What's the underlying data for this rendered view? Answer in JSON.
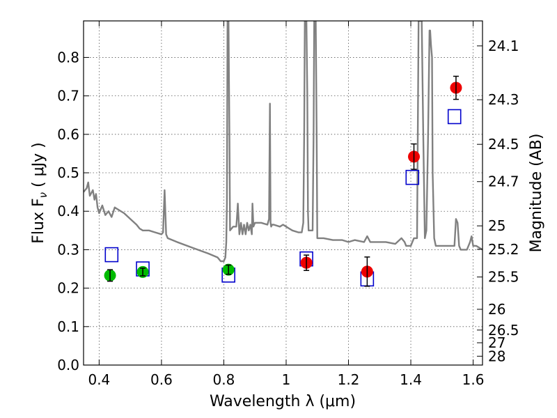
{
  "chart_data": {
    "type": "scatter",
    "title": "",
    "xlabel": "Wavelength  λ (μm)",
    "ylabel": "Flux  F",
    "ylabel_sub": "ν",
    "ylabel_unit": "  ( μJy )",
    "y2label": "Magnitude (AB)",
    "xlim": [
      0.35,
      1.63
    ],
    "ylim": [
      0.0,
      0.895
    ],
    "grid": true,
    "xticks": [
      0.4,
      0.6,
      0.8,
      1.0,
      1.2,
      1.4,
      1.6
    ],
    "xtick_labels": [
      "0.4",
      "0.6",
      "0.8",
      "1",
      "1.2",
      "1.4",
      "1.6"
    ],
    "yticks": [
      0.0,
      0.1,
      0.2,
      0.3,
      0.4,
      0.5,
      0.6,
      0.7,
      0.8
    ],
    "ytick_labels": [
      "0.0",
      "0.1",
      "0.2",
      "0.3",
      "0.4",
      "0.5",
      "0.6",
      "0.7",
      "0.8"
    ],
    "y2ticks": [
      {
        "label": "24.1",
        "flux": 0.83
      },
      {
        "label": "24.3",
        "flux": 0.69
      },
      {
        "label": "24.5",
        "flux": 0.574
      },
      {
        "label": "24.7",
        "flux": 0.477
      },
      {
        "label": "25",
        "flux": 0.362
      },
      {
        "label": "25.2",
        "flux": 0.301
      },
      {
        "label": "25.5",
        "flux": 0.229
      },
      {
        "label": "26",
        "flux": 0.145
      },
      {
        "label": "26.5",
        "flux": 0.091
      },
      {
        "label": "27",
        "flux": 0.058
      },
      {
        "label": "28",
        "flux": 0.023
      }
    ],
    "series": [
      {
        "name": "model spectrum",
        "kind": "line",
        "color": "#808080",
        "x": [
          0.35,
          0.36,
          0.365,
          0.37,
          0.38,
          0.385,
          0.39,
          0.395,
          0.4,
          0.41,
          0.42,
          0.43,
          0.44,
          0.45,
          0.46,
          0.48,
          0.5,
          0.52,
          0.53,
          0.54,
          0.56,
          0.58,
          0.6,
          0.605,
          0.61,
          0.615,
          0.62,
          0.65,
          0.7,
          0.75,
          0.78,
          0.79,
          0.8,
          0.805,
          0.808,
          0.81,
          0.812,
          0.815,
          0.818,
          0.82,
          0.83,
          0.84,
          0.842,
          0.845,
          0.85,
          0.855,
          0.86,
          0.865,
          0.87,
          0.875,
          0.88,
          0.885,
          0.89,
          0.892,
          0.895,
          0.9,
          0.92,
          0.94,
          0.945,
          0.948,
          0.95,
          0.952,
          0.955,
          0.96,
          0.98,
          0.99,
          1.0,
          1.01,
          1.02,
          1.04,
          1.05,
          1.055,
          1.058,
          1.06,
          1.065,
          1.068,
          1.07,
          1.072,
          1.075,
          1.08,
          1.085,
          1.088,
          1.09,
          1.092,
          1.095,
          1.098,
          1.1,
          1.12,
          1.15,
          1.18,
          1.2,
          1.22,
          1.25,
          1.26,
          1.27,
          1.28,
          1.3,
          1.32,
          1.35,
          1.37,
          1.38,
          1.385,
          1.39,
          1.4,
          1.41,
          1.42,
          1.425,
          1.43,
          1.435,
          1.44,
          1.445,
          1.45,
          1.455,
          1.46,
          1.462,
          1.465,
          1.468,
          1.47,
          1.475,
          1.48,
          1.5,
          1.52,
          1.54,
          1.545,
          1.55,
          1.555,
          1.56,
          1.58,
          1.59,
          1.595,
          1.6,
          1.61,
          1.62,
          1.63
        ],
        "y": [
          0.45,
          0.46,
          0.475,
          0.44,
          0.455,
          0.43,
          0.445,
          0.41,
          0.395,
          0.415,
          0.39,
          0.4,
          0.385,
          0.41,
          0.405,
          0.395,
          0.38,
          0.365,
          0.355,
          0.35,
          0.35,
          0.345,
          0.34,
          0.345,
          0.455,
          0.34,
          0.33,
          0.32,
          0.305,
          0.29,
          0.28,
          0.27,
          0.27,
          0.28,
          0.32,
          0.42,
          0.895,
          0.895,
          0.6,
          0.35,
          0.36,
          0.36,
          0.38,
          0.42,
          0.34,
          0.37,
          0.34,
          0.365,
          0.34,
          0.37,
          0.35,
          0.365,
          0.34,
          0.42,
          0.36,
          0.37,
          0.37,
          0.365,
          0.38,
          0.68,
          0.37,
          0.36,
          0.365,
          0.365,
          0.36,
          0.365,
          0.36,
          0.355,
          0.35,
          0.345,
          0.345,
          0.37,
          0.6,
          0.895,
          0.895,
          0.7,
          0.4,
          0.35,
          0.35,
          0.35,
          0.35,
          0.6,
          0.895,
          0.895,
          0.895,
          0.6,
          0.33,
          0.33,
          0.325,
          0.325,
          0.32,
          0.325,
          0.32,
          0.335,
          0.32,
          0.32,
          0.32,
          0.32,
          0.315,
          0.33,
          0.32,
          0.31,
          0.31,
          0.31,
          0.33,
          0.33,
          0.895,
          0.895,
          0.895,
          0.6,
          0.33,
          0.35,
          0.58,
          0.87,
          0.87,
          0.83,
          0.8,
          0.5,
          0.33,
          0.31,
          0.31,
          0.31,
          0.31,
          0.38,
          0.37,
          0.31,
          0.3,
          0.3,
          0.32,
          0.335,
          0.31,
          0.31,
          0.305,
          0.3
        ]
      },
      {
        "name": "observed (green)",
        "kind": "points",
        "marker": "circle",
        "color": "#00bb00",
        "x": [
          0.435,
          0.54,
          0.815
        ],
        "y": [
          0.233,
          0.242,
          0.248
        ],
        "yerr": [
          0.015,
          0.01,
          0.012
        ]
      },
      {
        "name": "observed (red)",
        "kind": "points",
        "marker": "circle",
        "color": "#ee0000",
        "x": [
          1.065,
          1.26,
          1.41,
          1.545
        ],
        "y": [
          0.266,
          0.243,
          0.542,
          0.721
        ],
        "yerr": [
          0.02,
          0.038,
          0.033,
          0.03
        ]
      },
      {
        "name": "model photometry",
        "kind": "points",
        "marker": "open-square",
        "color": "#0000cc",
        "x": [
          0.44,
          0.54,
          0.815,
          1.065,
          1.26,
          1.405,
          1.54
        ],
        "y": [
          0.287,
          0.25,
          0.234,
          0.276,
          0.224,
          0.488,
          0.646
        ]
      }
    ]
  }
}
